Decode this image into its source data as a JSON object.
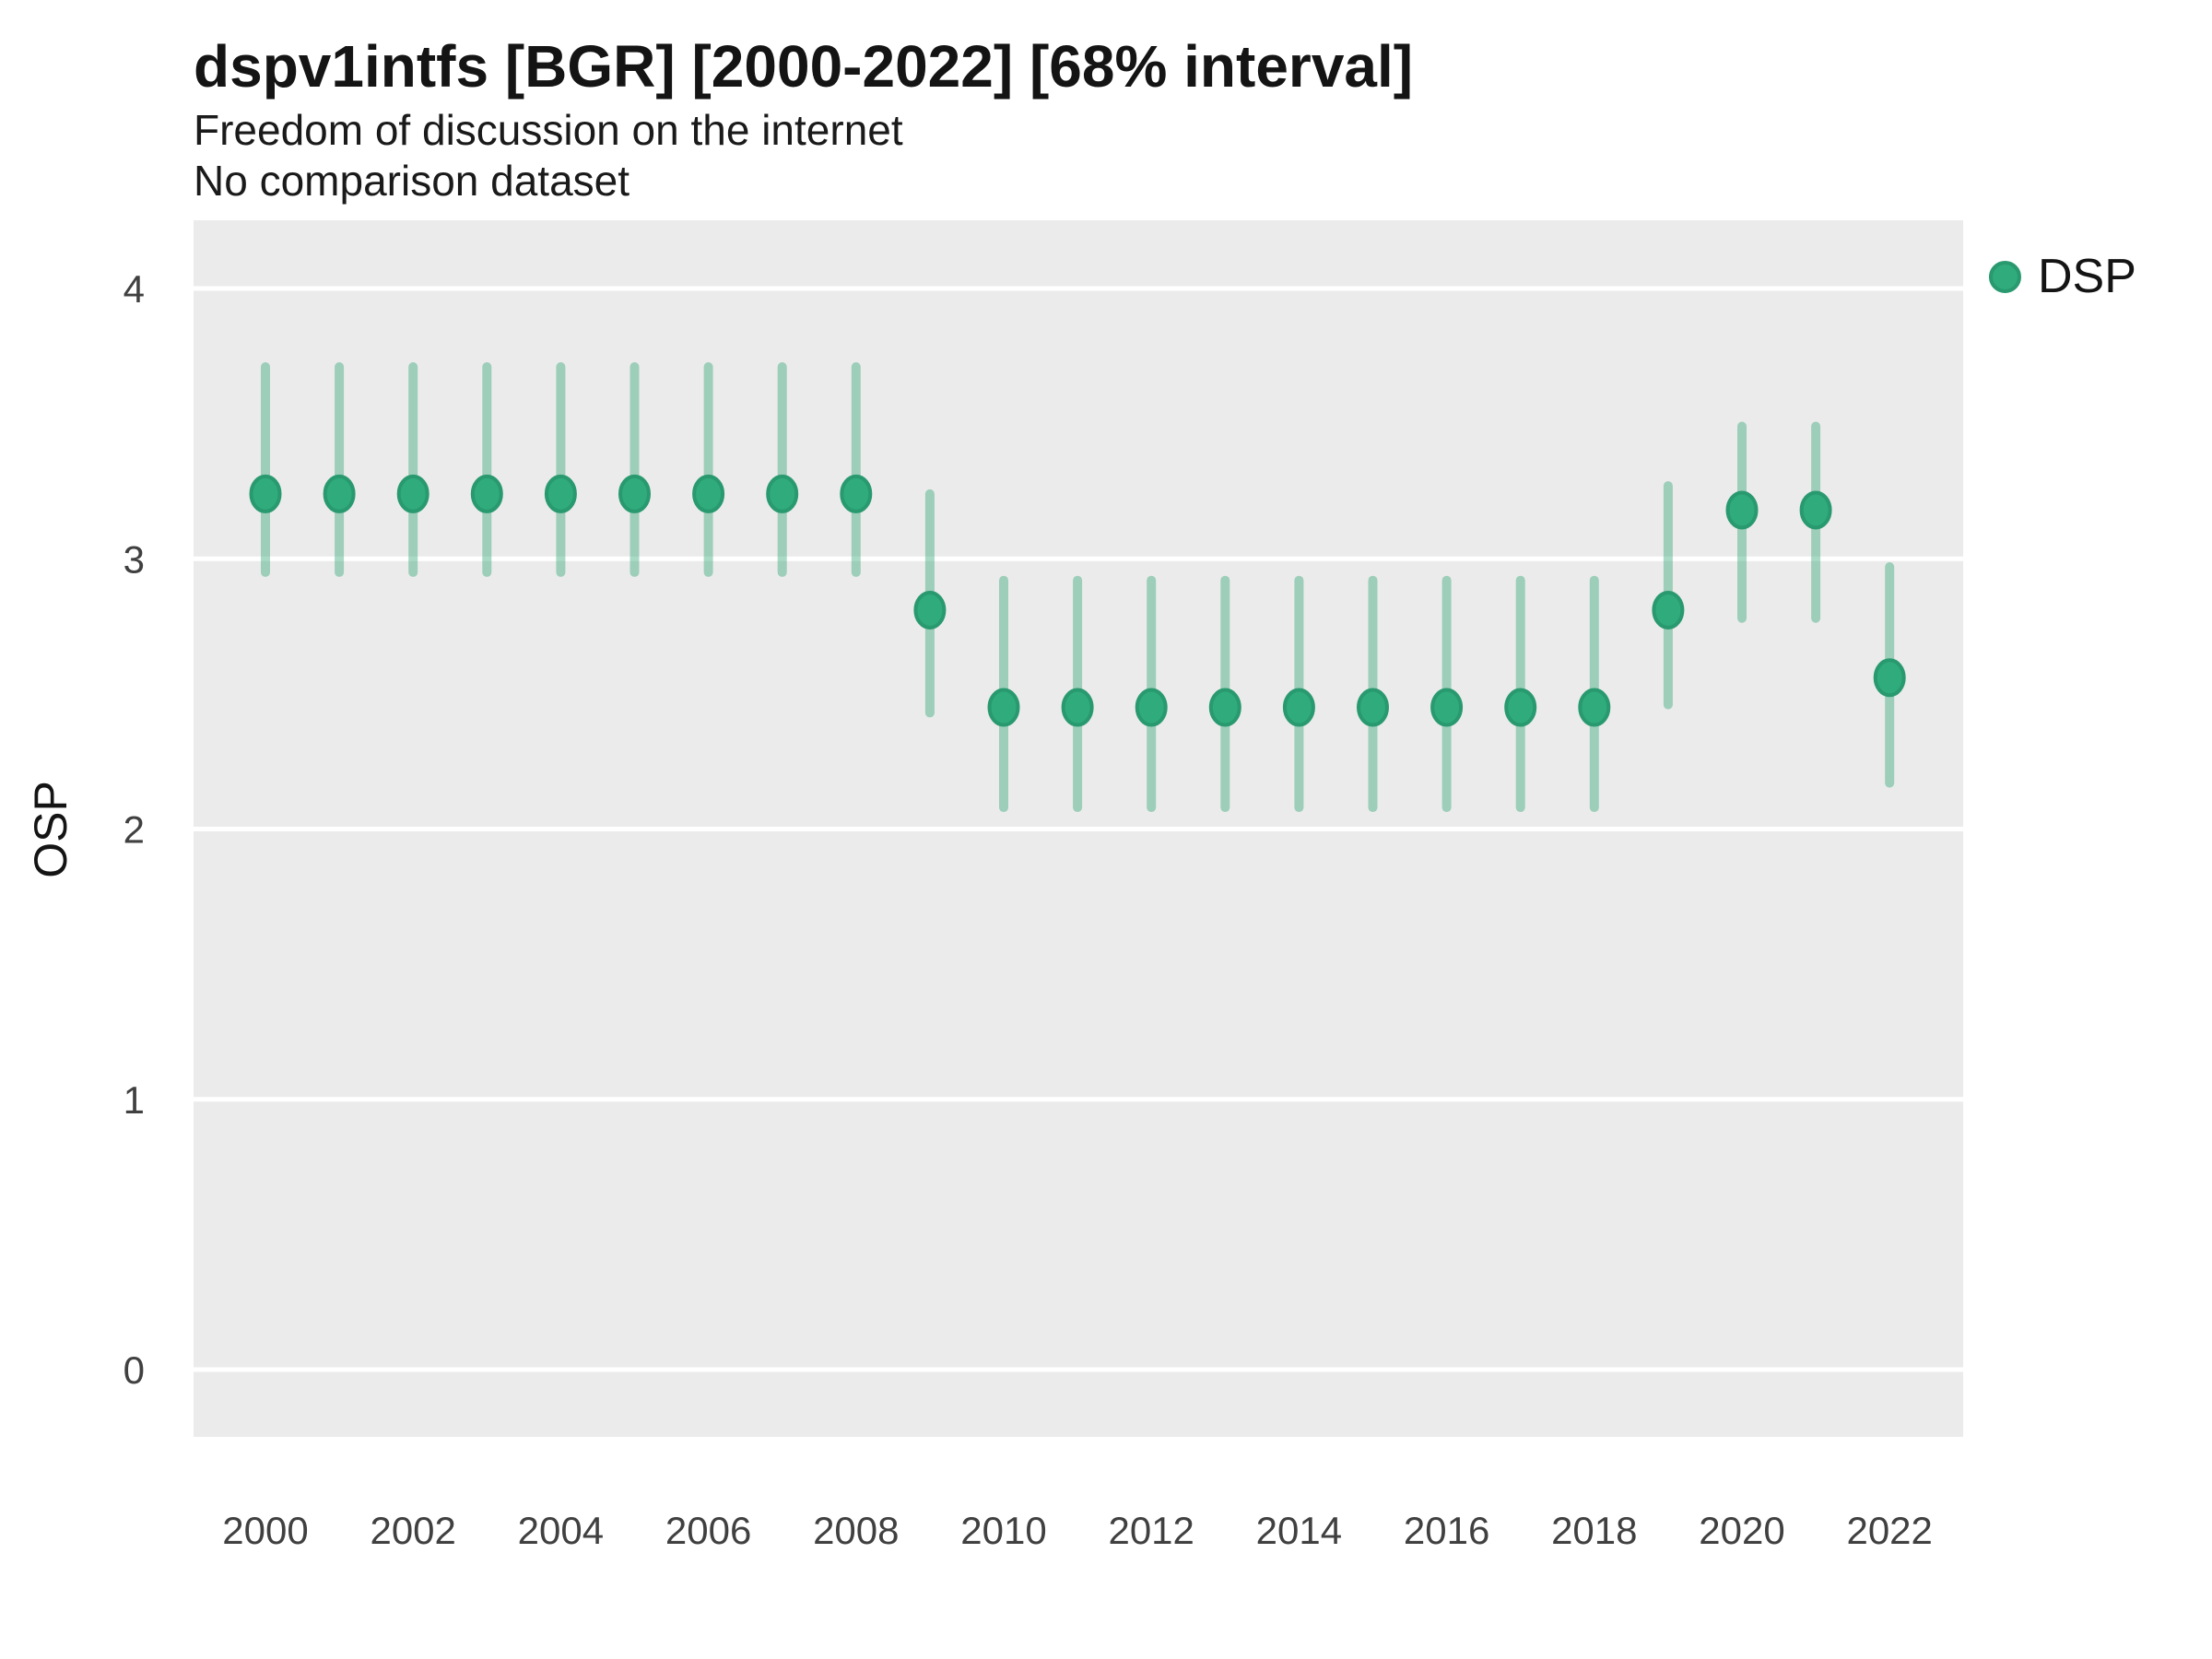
{
  "header": {
    "title": "dspv1intfs [BGR] [2000-2022] [68% interval]",
    "subtitle": "Freedom of discussion on the internet",
    "note": "No comparison dataset"
  },
  "legend": {
    "label": "DSP"
  },
  "colors": {
    "point_fill": "#2FAB7C",
    "point_border": "#29996F",
    "interval_bar": "rgba(47,166,118,0.42)",
    "panel_background": "#EBEBEB",
    "gridline": "#FFFFFF",
    "tick_text": "#404040",
    "heading_text": "#141414"
  },
  "chart_data": {
    "type": "pointrange",
    "title": "dspv1intfs [BGR] [2000-2022] [68% interval]",
    "subtitle": "Freedom of discussion on the internet",
    "note": "No comparison dataset",
    "interval_level": "68%",
    "xlabel": "",
    "ylabel": "OSP",
    "ylim": [
      0,
      4
    ],
    "y_ticks": [
      0,
      1,
      2,
      3,
      4
    ],
    "x_ticks": [
      2000,
      2002,
      2004,
      2006,
      2008,
      2010,
      2012,
      2014,
      2016,
      2018,
      2020,
      2022
    ],
    "grid": "major-horizontal",
    "legend_position": "right",
    "series": [
      {
        "name": "DSP",
        "points": [
          {
            "year": 2000,
            "value": 3.24,
            "lower": 2.95,
            "upper": 3.71
          },
          {
            "year": 2001,
            "value": 3.24,
            "lower": 2.95,
            "upper": 3.71
          },
          {
            "year": 2002,
            "value": 3.24,
            "lower": 2.95,
            "upper": 3.71
          },
          {
            "year": 2003,
            "value": 3.24,
            "lower": 2.95,
            "upper": 3.71
          },
          {
            "year": 2004,
            "value": 3.24,
            "lower": 2.95,
            "upper": 3.71
          },
          {
            "year": 2005,
            "value": 3.24,
            "lower": 2.95,
            "upper": 3.71
          },
          {
            "year": 2006,
            "value": 3.24,
            "lower": 2.95,
            "upper": 3.71
          },
          {
            "year": 2007,
            "value": 3.24,
            "lower": 2.95,
            "upper": 3.71
          },
          {
            "year": 2008,
            "value": 3.24,
            "lower": 2.95,
            "upper": 3.71
          },
          {
            "year": 2009,
            "value": 2.81,
            "lower": 2.43,
            "upper": 3.24
          },
          {
            "year": 2010,
            "value": 2.45,
            "lower": 2.08,
            "upper": 2.92
          },
          {
            "year": 2011,
            "value": 2.45,
            "lower": 2.08,
            "upper": 2.92
          },
          {
            "year": 2012,
            "value": 2.45,
            "lower": 2.08,
            "upper": 2.92
          },
          {
            "year": 2013,
            "value": 2.45,
            "lower": 2.08,
            "upper": 2.92
          },
          {
            "year": 2014,
            "value": 2.45,
            "lower": 2.08,
            "upper": 2.92
          },
          {
            "year": 2015,
            "value": 2.45,
            "lower": 2.08,
            "upper": 2.92
          },
          {
            "year": 2016,
            "value": 2.45,
            "lower": 2.08,
            "upper": 2.92
          },
          {
            "year": 2017,
            "value": 2.45,
            "lower": 2.08,
            "upper": 2.92
          },
          {
            "year": 2018,
            "value": 2.45,
            "lower": 2.08,
            "upper": 2.92
          },
          {
            "year": 2019,
            "value": 2.81,
            "lower": 2.46,
            "upper": 3.27
          },
          {
            "year": 2020,
            "value": 3.18,
            "lower": 2.78,
            "upper": 3.49
          },
          {
            "year": 2021,
            "value": 3.18,
            "lower": 2.78,
            "upper": 3.49
          },
          {
            "year": 2022,
            "value": 2.56,
            "lower": 2.17,
            "upper": 2.97
          }
        ]
      }
    ]
  }
}
